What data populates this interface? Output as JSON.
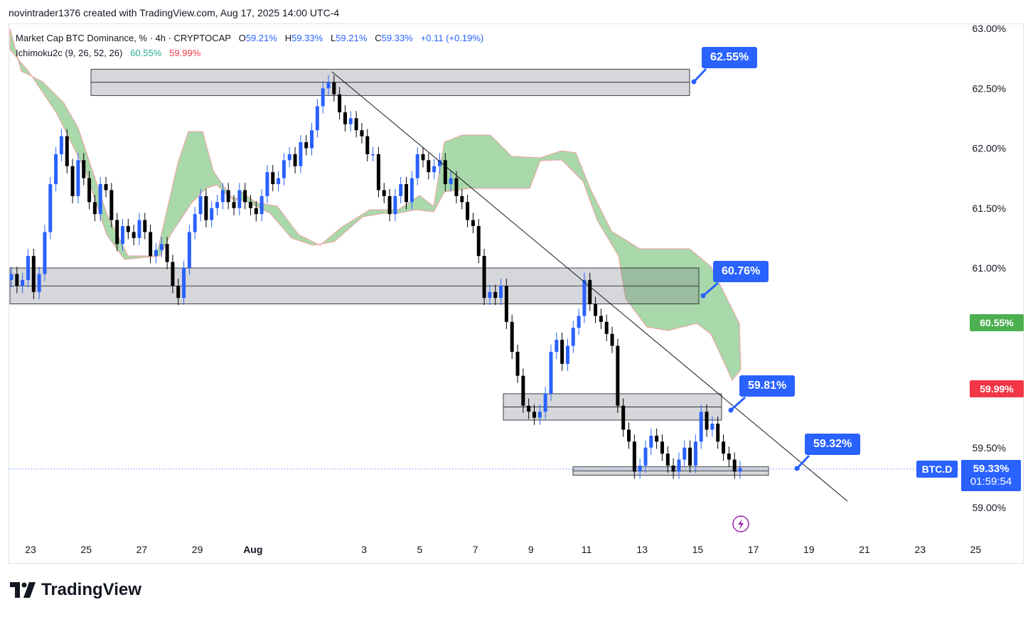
{
  "header": {
    "text": "novintrader1376 created with TradingView.com, Aug 17, 2025 14:00 UTC-4"
  },
  "legend": {
    "title": "Market Cap BTC Dominance, % · 4h · CRYPTOCAP",
    "o_label": "O",
    "o_value": "59.21%",
    "h_label": "H",
    "h_value": "59.33%",
    "l_label": "L",
    "l_value": "59.21%",
    "c_label": "C",
    "c_value": "59.33%",
    "change": "+0.11 (+0.19%)",
    "indicator": "Ichimoku2c (9, 26, 52, 26)",
    "ind_value_1": "60.55%",
    "ind_value_2": "59.99%"
  },
  "callouts": {
    "c1": "62.55%",
    "c2": "60.76%",
    "c3": "59.81%",
    "c4": "59.32%"
  },
  "price_tags": {
    "green": "60.55%",
    "red": "59.99%",
    "symbol": "BTC.D",
    "last": "59.33%",
    "countdown": "01:59:54"
  },
  "footer": {
    "logo_text": "TradingView"
  },
  "colors": {
    "bull": "#2962ff",
    "bear": "#000000",
    "cloud": "#a5d6a7",
    "cloud_edge_red": "#ef9a9a",
    "callout": "#2962ff",
    "tag_green": "#4caf50",
    "tag_red": "#f23645"
  },
  "chart_data": {
    "type": "candlestick",
    "ylim": [
      58.85,
      63.0
    ],
    "yticks": [
      "63.00%",
      "62.50%",
      "62.00%",
      "61.50%",
      "61.00%",
      "59.50%",
      "59.00%"
    ],
    "ytick_values": [
      63.0,
      62.5,
      62.0,
      61.5,
      61.0,
      59.5,
      59.0
    ],
    "xticks": [
      "23",
      "25",
      "27",
      "29",
      "Aug",
      "3",
      "5",
      "7",
      "9",
      "11",
      "13",
      "15",
      "17",
      "19",
      "21",
      "23",
      "25"
    ],
    "xtick_days": [
      -9,
      -7,
      -5,
      -3,
      -1,
      3,
      5,
      7,
      9,
      11,
      13,
      15,
      17,
      19,
      21,
      23,
      25
    ],
    "x_unit": "days relative to Aug 0 (Jul 31 = 0)",
    "candles_close": [
      60.95,
      60.85,
      60.9,
      61.1,
      60.8,
      60.95,
      61.3,
      61.7,
      61.95,
      62.1,
      61.85,
      61.6,
      61.9,
      61.75,
      61.55,
      61.45,
      61.7,
      61.65,
      61.4,
      61.2,
      61.35,
      61.3,
      61.25,
      61.4,
      61.3,
      61.1,
      61.15,
      61.2,
      61.05,
      60.85,
      60.75,
      61.0,
      61.3,
      61.45,
      61.6,
      61.4,
      61.5,
      61.55,
      61.65,
      61.55,
      61.5,
      61.65,
      61.55,
      61.5,
      61.45,
      61.6,
      61.8,
      61.7,
      61.75,
      61.9,
      61.95,
      61.85,
      62.05,
      62.0,
      62.15,
      62.35,
      62.5,
      62.55,
      62.45,
      62.3,
      62.2,
      62.25,
      62.15,
      62.1,
      61.95,
      61.95,
      61.65,
      61.6,
      61.45,
      61.6,
      61.7,
      61.55,
      61.75,
      61.95,
      61.9,
      61.8,
      61.85,
      61.9,
      61.7,
      61.75,
      61.6,
      61.55,
      61.4,
      61.35,
      61.1,
      60.75,
      60.8,
      60.75,
      60.85,
      60.55,
      60.3,
      60.1,
      59.85,
      59.8,
      59.75,
      59.8,
      59.95,
      60.3,
      60.4,
      60.2,
      60.35,
      60.5,
      60.6,
      60.9,
      60.7,
      60.6,
      60.55,
      60.45,
      60.35,
      59.85,
      59.65,
      59.55,
      59.3,
      59.35,
      59.5,
      59.6,
      59.55,
      59.45,
      59.35,
      59.3,
      59.4,
      59.5,
      59.35,
      59.55,
      59.8,
      59.65,
      59.7,
      59.55,
      59.45,
      59.4,
      59.3,
      59.33
    ]
  }
}
